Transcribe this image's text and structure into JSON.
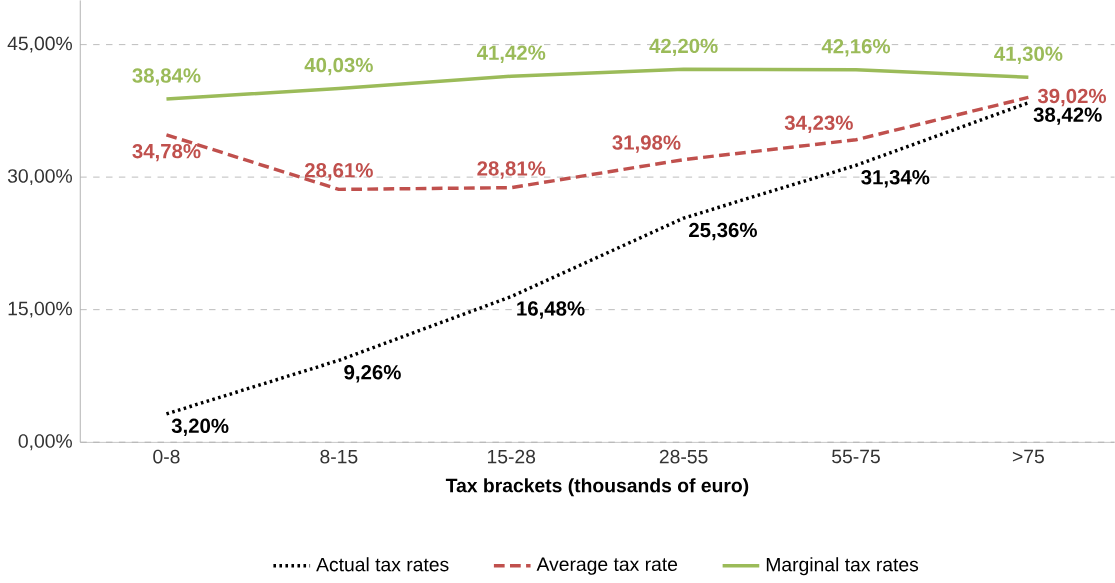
{
  "chart_data": {
    "type": "line",
    "xlabel": "Tax brackets (thousands of euro)",
    "categories": [
      "0-8",
      "8-15",
      "15-28",
      "28-55",
      "55-75",
      ">75"
    ],
    "ylim": [
      0,
      50
    ],
    "yticks": [
      {
        "value": 0,
        "label": "0,00%"
      },
      {
        "value": 15,
        "label": "15,00%"
      },
      {
        "value": 30,
        "label": "30,00%"
      },
      {
        "value": 45,
        "label": "45,00%"
      }
    ],
    "grid": "y",
    "legend": "bottom",
    "marker": "none",
    "series": [
      {
        "name": "Actual tax rates",
        "color": "#000000",
        "line_style": "dotted",
        "values": [
          3.2,
          9.26,
          16.48,
          25.36,
          31.34,
          38.42
        ],
        "value_labels": [
          "3,20%",
          "9,26%",
          "16,48%",
          "25,36%",
          "31,34%",
          "38,42%"
        ]
      },
      {
        "name": "Average tax rate",
        "color": "#c0504d",
        "line_style": "dashed",
        "values": [
          34.78,
          28.61,
          28.81,
          31.98,
          34.23,
          39.02
        ],
        "value_labels": [
          "34,78%",
          "28,61%",
          "28,81%",
          "31,98%",
          "34,23%",
          "39,02%"
        ]
      },
      {
        "name": "Marginal tax rates",
        "color": "#9bbb59",
        "line_style": "solid",
        "values": [
          38.84,
          40.03,
          41.42,
          42.2,
          42.16,
          41.3
        ],
        "value_labels": [
          "38,84%",
          "40,03%",
          "41,42%",
          "42,20%",
          "42,16%",
          "41,30%"
        ]
      }
    ]
  }
}
